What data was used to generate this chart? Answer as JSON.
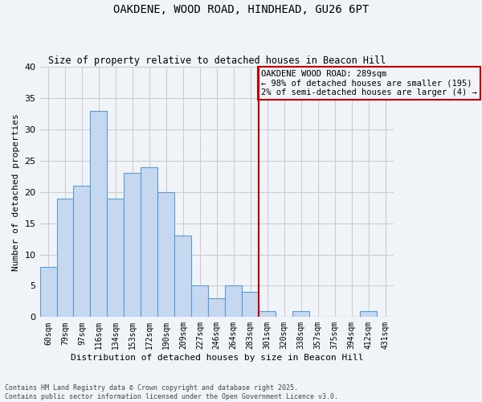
{
  "title1": "OAKDENE, WOOD ROAD, HINDHEAD, GU26 6PT",
  "title2": "Size of property relative to detached houses in Beacon Hill",
  "xlabel": "Distribution of detached houses by size in Beacon Hill",
  "ylabel": "Number of detached properties",
  "categories": [
    "60sqm",
    "79sqm",
    "97sqm",
    "116sqm",
    "134sqm",
    "153sqm",
    "172sqm",
    "190sqm",
    "209sqm",
    "227sqm",
    "246sqm",
    "264sqm",
    "283sqm",
    "301sqm",
    "320sqm",
    "338sqm",
    "357sqm",
    "375sqm",
    "394sqm",
    "412sqm",
    "431sqm"
  ],
  "values": [
    8,
    19,
    21,
    33,
    19,
    23,
    24,
    20,
    13,
    5,
    3,
    5,
    4,
    1,
    0,
    1,
    0,
    0,
    0,
    1,
    0
  ],
  "bar_color": "#c5d8f0",
  "bar_edge_color": "#5b9bd5",
  "vline_x": 12.5,
  "vline_color": "#cc0000",
  "annotation_text": "OAKDENE WOOD ROAD: 289sqm\n← 98% of detached houses are smaller (195)\n2% of semi-detached houses are larger (4) →",
  "annotation_box_color": "#cc0000",
  "ylim": [
    0,
    40
  ],
  "yticks": [
    0,
    5,
    10,
    15,
    20,
    25,
    30,
    35,
    40
  ],
  "footer1": "Contains HM Land Registry data © Crown copyright and database right 2025.",
  "footer2": "Contains public sector information licensed under the Open Government Licence v3.0.",
  "bg_color": "#f0f4f8",
  "grid_color": "#cccccc"
}
